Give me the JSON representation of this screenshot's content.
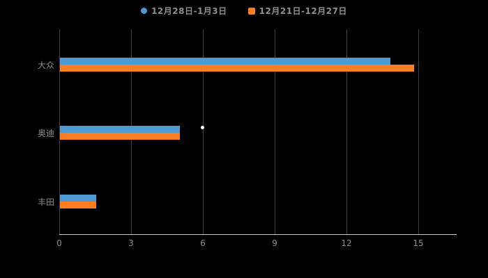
{
  "chart_data": {
    "type": "bar",
    "orientation": "horizontal",
    "title": "",
    "categories": [
      "大众",
      "奥迪",
      "丰田"
    ],
    "series": [
      {
        "name": "12月28日-1月3日",
        "color": "#4E9BD4",
        "marker": "circle",
        "values": [
          13.8,
          5,
          1.5
        ]
      },
      {
        "name": "12月21日-12月27日",
        "color": "#FB7E23",
        "marker": "square",
        "values": [
          14.8,
          5,
          1.5
        ]
      }
    ],
    "xlabel": "",
    "ylabel": "",
    "xlim": [
      0,
      15
    ],
    "xticks": [
      0,
      3,
      6,
      9,
      12,
      15
    ],
    "grid": true,
    "legend_position": "top"
  },
  "colors": {
    "background": "#000000",
    "grid_line": "#3F3F3F",
    "axis_line": "#CFCFCF",
    "label_text": "#8F8F8F"
  }
}
